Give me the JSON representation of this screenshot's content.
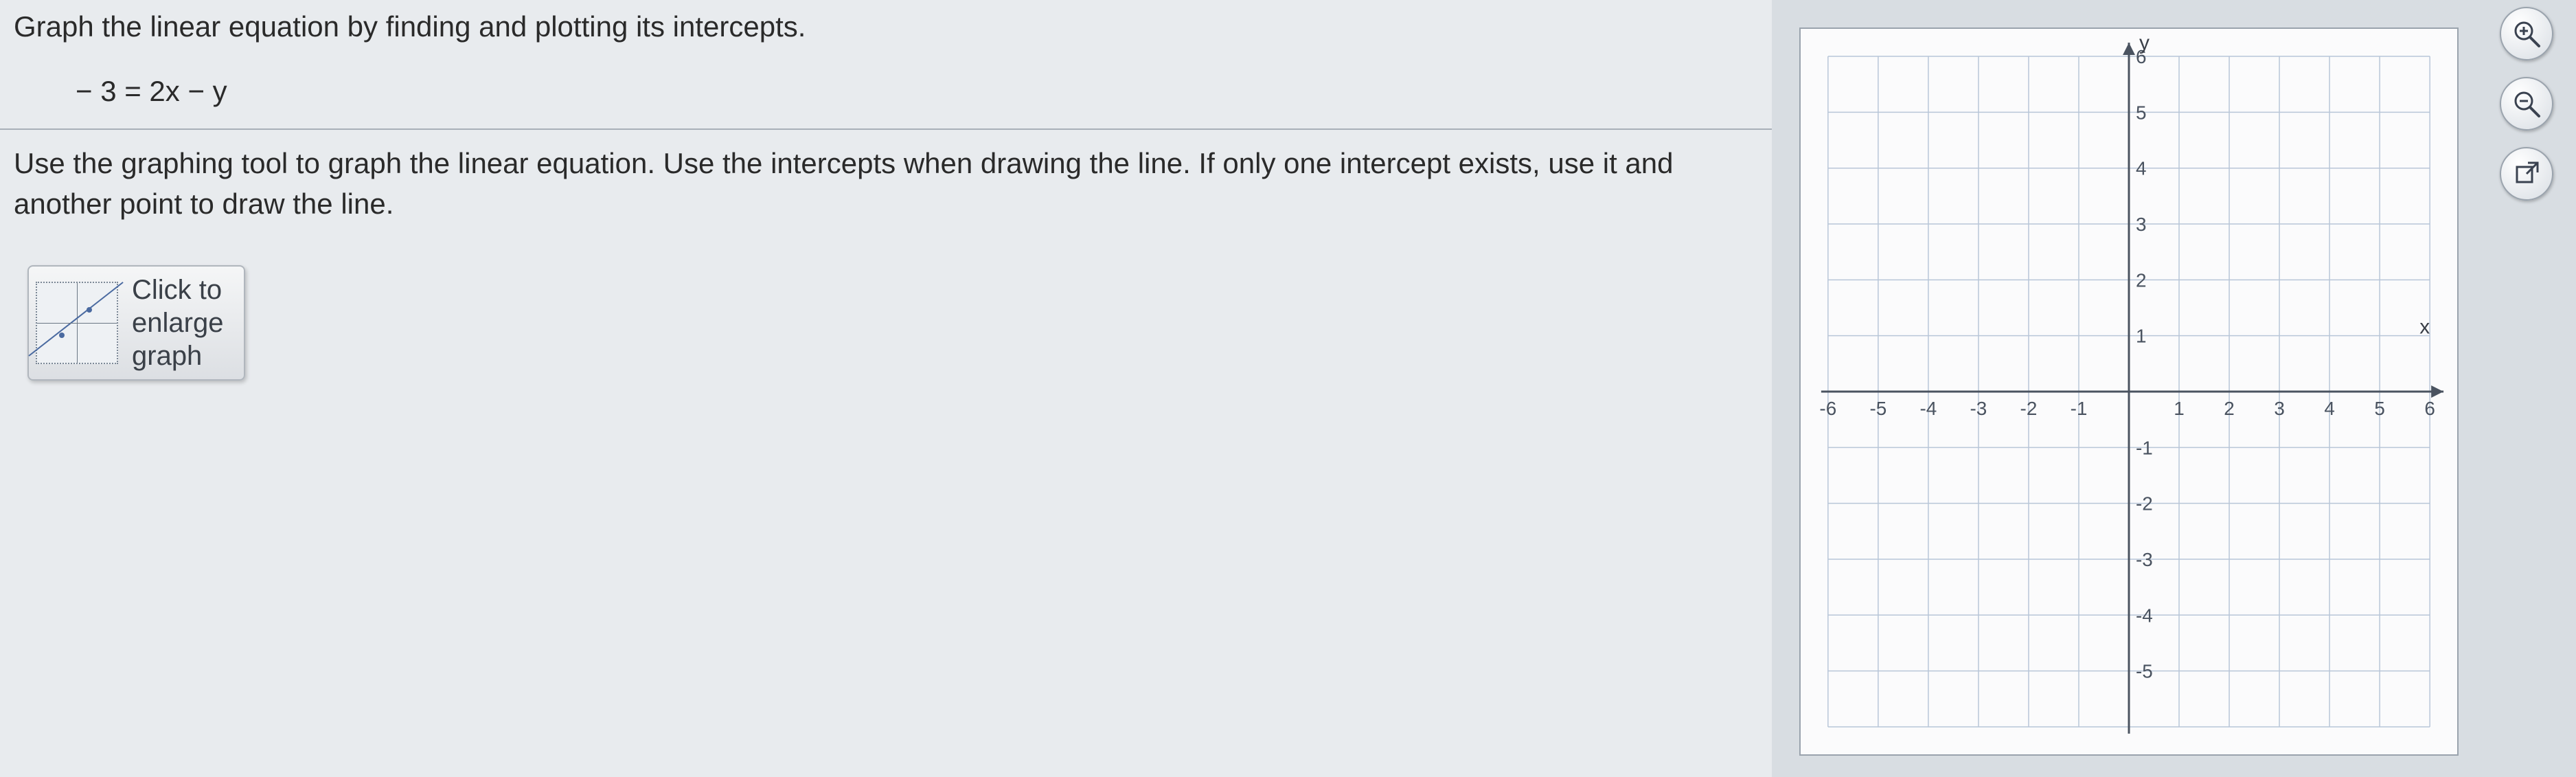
{
  "question": {
    "prompt": "Graph the linear equation by finding and plotting its intercepts.",
    "equation": "− 3 = 2x − y",
    "instruction": "Use the graphing tool to graph the linear equation.  Use the intercepts when drawing the line.  If only one intercept exists, use it and another point to draw the line."
  },
  "enlarge": {
    "line1": "Click to",
    "line2": "enlarge",
    "line3": "graph"
  },
  "graph": {
    "x_label": "x",
    "y_label": "y",
    "xmin": -6,
    "xmax": 6,
    "ymin": -6,
    "ymax": 6,
    "tick_step": 1,
    "grid_color": "#b8c6d8",
    "axis_color": "#4a5360",
    "background": "#fbfbfc",
    "x_ticks": [
      -6,
      -5,
      -4,
      -3,
      -2,
      -1,
      1,
      2,
      3,
      4,
      5,
      6
    ],
    "y_ticks": [
      -5,
      -4,
      -3,
      -2,
      -1,
      1,
      2,
      3,
      4,
      5,
      6
    ]
  },
  "tools": {
    "zoom_in": "zoom-in",
    "zoom_out": "zoom-out",
    "popout": "popout"
  }
}
